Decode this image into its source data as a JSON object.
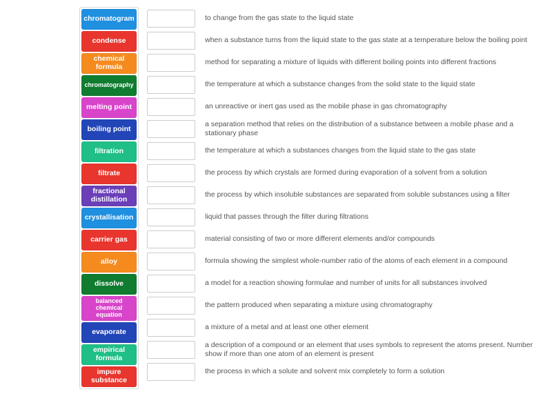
{
  "colors": {
    "blue": "#1f8fe0",
    "red": "#e8362e",
    "orange": "#f58b1f",
    "darkgreen": "#0f7c2f",
    "magenta": "#d844ca",
    "darkblue": "#2245b8",
    "teal": "#1fbf87",
    "purple": "#6a3fb8",
    "drop_border": "#cccccc",
    "def_text": "#555555",
    "bg": "#ffffff"
  },
  "terms": [
    {
      "label": "chromatogram",
      "color": "blue",
      "small": false
    },
    {
      "label": "condense",
      "color": "red",
      "small": false
    },
    {
      "label": "chemical formula",
      "color": "orange",
      "small": false
    },
    {
      "label": "chromatography",
      "color": "darkgreen",
      "small": true
    },
    {
      "label": "melting point",
      "color": "magenta",
      "small": false
    },
    {
      "label": "boiling point",
      "color": "darkblue",
      "small": false
    },
    {
      "label": "filtration",
      "color": "teal",
      "small": false
    },
    {
      "label": "filtrate",
      "color": "red",
      "small": false
    },
    {
      "label": "fractional distillation",
      "color": "purple",
      "small": false
    },
    {
      "label": "crystallisation",
      "color": "blue",
      "small": false
    },
    {
      "label": "carrier gas",
      "color": "red",
      "small": false
    },
    {
      "label": "alloy",
      "color": "orange",
      "small": false
    },
    {
      "label": "dissolve",
      "color": "darkgreen",
      "small": false
    },
    {
      "label": "balanced chemical equation",
      "color": "magenta",
      "small": true
    },
    {
      "label": "evaporate",
      "color": "darkblue",
      "small": false
    },
    {
      "label": "empirical formula",
      "color": "teal",
      "small": false
    },
    {
      "label": "impure substance",
      "color": "red",
      "small": false
    }
  ],
  "definitions": [
    "to change from the gas state to the liquid state",
    "when a substance turns from the liquid state to the gas state at a temperature below the boiling point",
    "method for separating a mixture of liquids with different boiling points into different fractions",
    "the temperature at which a substance changes from the solid state to the liquid state",
    "an unreactive or inert gas used as the mobile phase in gas chromatography",
    "a separation method that relies on the distribution of a substance between a mobile phase and a stationary phase",
    "the temperature at which a substances changes from the liquid state to the gas state",
    "the process by which crystals are formed during evaporation of a solvent from a solution",
    "the process by which insoluble substances are separated from soluble substances using a filter",
    "liquid that passes through the filter during filtrations",
    "material consisting of two or more different elements and/or compounds",
    "formula showing the simplest whole-number ratio of the atoms of each element in a compound",
    "a model for a reaction showing formulae and number of units for all substances involved",
    "the pattern produced when separating a mixture using chromatography",
    "a mixture of a metal and at least one other element",
    "a description of a compound or an element that uses symbols to represent the atoms present. Number show if more than one atom of an element is present",
    "the process in which a solute and solvent mix completely to form a solution"
  ]
}
